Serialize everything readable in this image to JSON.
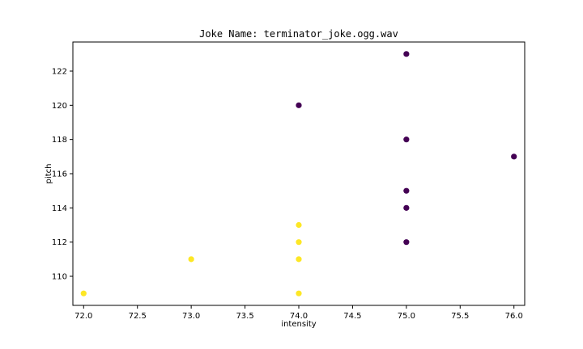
{
  "chart_data": {
    "type": "scatter",
    "title": "Joke Name: terminator_joke.ogg.wav",
    "xlabel": "intensity",
    "ylabel": "pitch",
    "xlim": [
      71.9,
      76.1
    ],
    "ylim": [
      108.3,
      123.7
    ],
    "xticks": [
      72.0,
      72.5,
      73.0,
      73.5,
      74.0,
      74.5,
      75.0,
      75.5,
      76.0
    ],
    "xtick_labels": [
      "72.0",
      "72.5",
      "73.0",
      "73.5",
      "74.0",
      "74.5",
      "75.0",
      "75.5",
      "76.0"
    ],
    "yticks": [
      110,
      112,
      114,
      116,
      118,
      120,
      122
    ],
    "ytick_labels": [
      "110",
      "112",
      "114",
      "116",
      "118",
      "120",
      "122"
    ],
    "grid": false,
    "colors": {
      "class_a": "#440154",
      "class_b": "#fde725"
    },
    "points": [
      {
        "x": 75.0,
        "y": 123,
        "class": "class_a"
      },
      {
        "x": 74.0,
        "y": 120,
        "class": "class_a"
      },
      {
        "x": 75.0,
        "y": 118,
        "class": "class_a"
      },
      {
        "x": 76.0,
        "y": 117,
        "class": "class_a"
      },
      {
        "x": 75.0,
        "y": 115,
        "class": "class_a"
      },
      {
        "x": 75.0,
        "y": 114,
        "class": "class_a"
      },
      {
        "x": 75.0,
        "y": 112,
        "class": "class_a"
      },
      {
        "x": 74.0,
        "y": 113,
        "class": "class_b"
      },
      {
        "x": 74.0,
        "y": 112,
        "class": "class_b"
      },
      {
        "x": 74.0,
        "y": 111,
        "class": "class_b"
      },
      {
        "x": 73.0,
        "y": 111,
        "class": "class_b"
      },
      {
        "x": 72.0,
        "y": 109,
        "class": "class_b"
      },
      {
        "x": 74.0,
        "y": 109,
        "class": "class_b"
      }
    ]
  }
}
